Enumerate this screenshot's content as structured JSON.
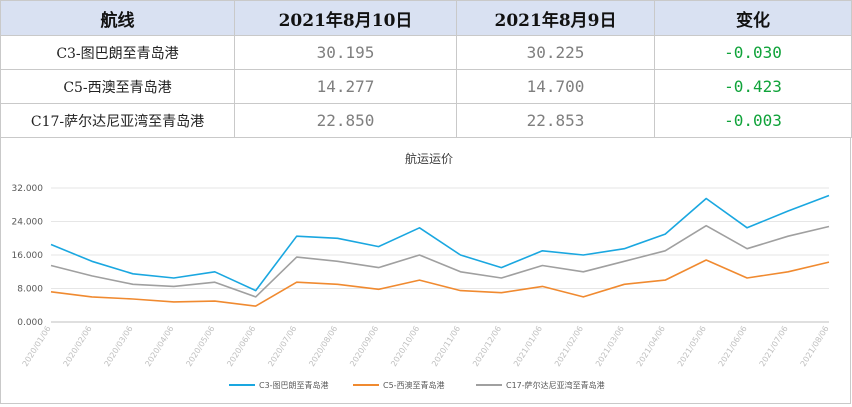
{
  "table": {
    "headers": [
      "航线",
      "2021年8月10日",
      "2021年8月9日",
      "变化"
    ],
    "rows": [
      {
        "route": "C3-图巴朗至青岛港",
        "today": "30.195",
        "prev": "30.225",
        "change": "-0.030"
      },
      {
        "route": "C5-西澳至青岛港",
        "today": "14.277",
        "prev": "14.700",
        "change": "-0.423"
      },
      {
        "route": "C17-萨尔达尼亚湾至青岛港",
        "today": "22.850",
        "prev": "22.853",
        "change": "-0.003"
      }
    ]
  },
  "chart_data": {
    "type": "line",
    "title": "航运运价",
    "ylim": [
      0,
      32
    ],
    "yticks": [
      "0.000",
      "8.000",
      "16.000",
      "24.000",
      "32.000"
    ],
    "grid": true,
    "legend": "bottom",
    "x": [
      "2020/01/06",
      "2020/02/06",
      "2020/03/06",
      "2020/04/06",
      "2020/05/06",
      "2020/06/06",
      "2020/07/06",
      "2020/08/06",
      "2020/09/06",
      "2020/10/06",
      "2020/11/06",
      "2020/12/06",
      "2021/01/06",
      "2021/02/06",
      "2021/03/06",
      "2021/04/06",
      "2021/05/06",
      "2021/06/06",
      "2021/07/06",
      "2021/08/06"
    ],
    "series": [
      {
        "name": "C3-图巴朗至青岛港",
        "color": "#1aa7e0",
        "values": [
          18.5,
          14.5,
          11.5,
          10.5,
          12.0,
          7.5,
          20.5,
          20.0,
          18.0,
          22.5,
          16.0,
          13.0,
          17.0,
          16.0,
          17.5,
          21.0,
          29.5,
          22.5,
          26.5,
          30.2
        ]
      },
      {
        "name": "C5-西澳至青岛港",
        "color": "#f08a30",
        "values": [
          7.2,
          6.0,
          5.5,
          4.8,
          5.0,
          3.8,
          9.5,
          9.0,
          7.8,
          10.0,
          7.5,
          7.0,
          8.5,
          6.0,
          9.0,
          10.0,
          14.8,
          10.5,
          12.0,
          14.3
        ]
      },
      {
        "name": "C17-萨尔达尼亚湾至青岛港",
        "color": "#a0a0a0",
        "values": [
          13.5,
          11.0,
          9.0,
          8.5,
          9.5,
          6.0,
          15.5,
          14.5,
          13.0,
          16.0,
          12.0,
          10.5,
          13.5,
          12.0,
          14.5,
          17.0,
          23.0,
          17.5,
          20.5,
          22.8
        ]
      }
    ]
  }
}
